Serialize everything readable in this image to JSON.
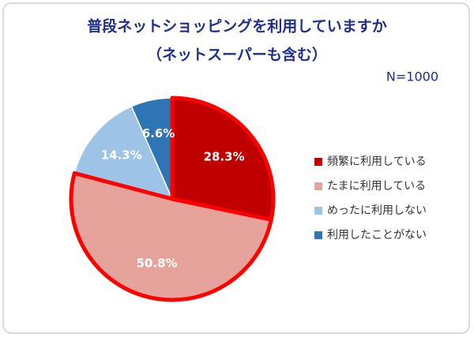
{
  "chart_data": {
    "type": "pie",
    "title": "普段ネットショッピングを利用していますか",
    "subtitle": "（ネットスーパーも含む）",
    "annotation": "N=1000",
    "categories": [
      "頻繁に利用している",
      "たまに利用している",
      "めったに利用しない",
      "利用したことがない"
    ],
    "values": [
      28.3,
      50.8,
      14.3,
      6.6
    ],
    "value_labels": [
      "28.3%",
      "50.8%",
      "14.3%",
      "6.6%"
    ],
    "colors": [
      "#c00000",
      "#e6a39b",
      "#9dc3e6",
      "#2e75b6"
    ],
    "outlined": [
      true,
      true,
      false,
      false
    ],
    "outline_color": "#ff0000",
    "legend": "right"
  }
}
